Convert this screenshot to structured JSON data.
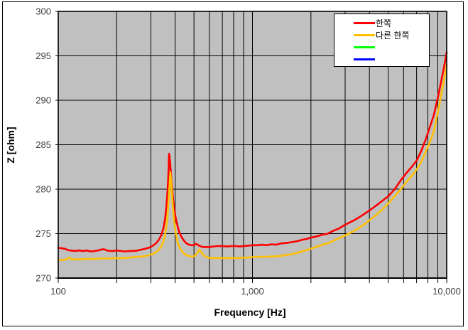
{
  "figure": {
    "x_axis_title": "Frequency [Hz]",
    "y_axis_title": "Z [ohm]"
  },
  "legend": {
    "position": "top-right",
    "items": [
      {
        "label": "한쪽",
        "color": "#ff0000"
      },
      {
        "label": "다른 한쪽",
        "color": "#ffc000"
      },
      {
        "label": "",
        "color": "#00ff00"
      },
      {
        "label": "",
        "color": "#0000ff"
      }
    ]
  },
  "chart_data": {
    "type": "line",
    "title": "",
    "xlabel": "Frequency [Hz]",
    "ylabel": "Z [ohm]",
    "x_scale": "log",
    "xlim": [
      100,
      10000
    ],
    "ylim": [
      270,
      300
    ],
    "y_ticks": [
      270,
      275,
      280,
      285,
      290,
      295,
      300
    ],
    "x_ticks": [
      100,
      1000,
      10000
    ],
    "x_tick_labels": [
      "100",
      "1,000",
      "10,000"
    ],
    "grid": "major and minor, black lines",
    "plot_bg": "#c0c0c0",
    "grid_color": "#000000",
    "tick_label_color": "#404040",
    "series": [
      {
        "name": "한쪽",
        "color": "#ff0000",
        "points": [
          [
            100,
            273.4
          ],
          [
            104,
            273.35
          ],
          [
            108,
            273.3
          ],
          [
            112,
            273.15
          ],
          [
            116,
            273.1
          ],
          [
            122,
            273.05
          ],
          [
            128,
            273.1
          ],
          [
            134,
            273.05
          ],
          [
            140,
            273.1
          ],
          [
            147,
            273.0
          ],
          [
            154,
            273.05
          ],
          [
            160,
            273.1
          ],
          [
            166,
            273.2
          ],
          [
            172,
            273.25
          ],
          [
            178,
            273.1
          ],
          [
            185,
            273.05
          ],
          [
            192,
            273.05
          ],
          [
            200,
            273.1
          ],
          [
            210,
            273.05
          ],
          [
            220,
            273.0
          ],
          [
            232,
            273.05
          ],
          [
            244,
            273.05
          ],
          [
            256,
            273.1
          ],
          [
            268,
            273.2
          ],
          [
            280,
            273.3
          ],
          [
            292,
            273.4
          ],
          [
            305,
            273.6
          ],
          [
            318,
            273.9
          ],
          [
            330,
            274.3
          ],
          [
            340,
            274.9
          ],
          [
            348,
            275.6
          ],
          [
            355,
            276.7
          ],
          [
            361,
            278.2
          ],
          [
            366,
            280.0
          ],
          [
            370,
            282.2
          ],
          [
            372,
            284.0
          ],
          [
            375,
            283.6
          ],
          [
            378,
            282.6
          ],
          [
            382,
            281.2
          ],
          [
            386,
            280.0
          ],
          [
            391,
            278.7
          ],
          [
            397,
            277.5
          ],
          [
            404,
            276.6
          ],
          [
            412,
            275.8
          ],
          [
            421,
            275.1
          ],
          [
            432,
            274.6
          ],
          [
            444,
            274.2
          ],
          [
            458,
            273.9
          ],
          [
            472,
            273.75
          ],
          [
            487,
            273.7
          ],
          [
            500,
            273.7
          ],
          [
            512,
            273.85
          ],
          [
            520,
            273.8
          ],
          [
            530,
            273.65
          ],
          [
            545,
            273.55
          ],
          [
            560,
            273.5
          ],
          [
            580,
            273.5
          ],
          [
            600,
            273.5
          ],
          [
            630,
            273.55
          ],
          [
            660,
            273.6
          ],
          [
            700,
            273.6
          ],
          [
            740,
            273.55
          ],
          [
            780,
            273.6
          ],
          [
            820,
            273.6
          ],
          [
            860,
            273.55
          ],
          [
            900,
            273.6
          ],
          [
            950,
            273.65
          ],
          [
            1000,
            273.7
          ],
          [
            1060,
            273.7
          ],
          [
            1120,
            273.75
          ],
          [
            1180,
            273.7
          ],
          [
            1250,
            273.8
          ],
          [
            1320,
            273.75
          ],
          [
            1400,
            273.9
          ],
          [
            1500,
            273.95
          ],
          [
            1600,
            274.05
          ],
          [
            1700,
            274.15
          ],
          [
            1800,
            274.3
          ],
          [
            1900,
            274.4
          ],
          [
            2000,
            274.55
          ],
          [
            2150,
            274.7
          ],
          [
            2300,
            274.9
          ],
          [
            2450,
            275.0
          ],
          [
            2600,
            275.3
          ],
          [
            2800,
            275.6
          ],
          [
            3000,
            276.0
          ],
          [
            3200,
            276.3
          ],
          [
            3400,
            276.6
          ],
          [
            3700,
            277.1
          ],
          [
            4000,
            277.6
          ],
          [
            4300,
            278.1
          ],
          [
            4600,
            278.6
          ],
          [
            5000,
            279.2
          ],
          [
            5400,
            280.0
          ],
          [
            5800,
            281.0
          ],
          [
            6200,
            281.8
          ],
          [
            6600,
            282.5
          ],
          [
            7000,
            283.2
          ],
          [
            7400,
            284.3
          ],
          [
            7800,
            285.6
          ],
          [
            8200,
            287.0
          ],
          [
            8600,
            288.4
          ],
          [
            9000,
            290.3
          ],
          [
            9400,
            292.3
          ],
          [
            9700,
            293.8
          ],
          [
            10000,
            295.4
          ]
        ]
      },
      {
        "name": "다른 한쪽",
        "color": "#ffc000",
        "points": [
          [
            100,
            272.0
          ],
          [
            105,
            272.05
          ],
          [
            110,
            272.1
          ],
          [
            114,
            272.3
          ],
          [
            118,
            272.1
          ],
          [
            124,
            272.1
          ],
          [
            130,
            272.1
          ],
          [
            140,
            272.15
          ],
          [
            152,
            272.15
          ],
          [
            165,
            272.2
          ],
          [
            180,
            272.2
          ],
          [
            200,
            272.25
          ],
          [
            215,
            272.25
          ],
          [
            230,
            272.3
          ],
          [
            245,
            272.35
          ],
          [
            260,
            272.4
          ],
          [
            275,
            272.45
          ],
          [
            290,
            272.55
          ],
          [
            305,
            272.7
          ],
          [
            318,
            272.9
          ],
          [
            330,
            273.2
          ],
          [
            342,
            273.7
          ],
          [
            352,
            274.5
          ],
          [
            360,
            275.7
          ],
          [
            366,
            277.3
          ],
          [
            371,
            279.2
          ],
          [
            375,
            280.8
          ],
          [
            378,
            281.9
          ],
          [
            381,
            281.0
          ],
          [
            385,
            279.5
          ],
          [
            390,
            277.8
          ],
          [
            396,
            276.2
          ],
          [
            403,
            275.0
          ],
          [
            411,
            274.1
          ],
          [
            420,
            273.5
          ],
          [
            432,
            273.05
          ],
          [
            445,
            272.75
          ],
          [
            460,
            272.55
          ],
          [
            476,
            272.45
          ],
          [
            492,
            272.4
          ],
          [
            508,
            272.55
          ],
          [
            522,
            272.9
          ],
          [
            532,
            273.2
          ],
          [
            542,
            273.0
          ],
          [
            555,
            272.65
          ],
          [
            570,
            272.45
          ],
          [
            590,
            272.3
          ],
          [
            620,
            272.25
          ],
          [
            660,
            272.25
          ],
          [
            700,
            272.25
          ],
          [
            750,
            272.25
          ],
          [
            800,
            272.25
          ],
          [
            850,
            272.25
          ],
          [
            900,
            272.3
          ],
          [
            950,
            272.3
          ],
          [
            1000,
            272.35
          ],
          [
            1100,
            272.4
          ],
          [
            1200,
            272.4
          ],
          [
            1300,
            272.45
          ],
          [
            1400,
            272.5
          ],
          [
            1500,
            272.6
          ],
          [
            1600,
            272.7
          ],
          [
            1700,
            272.85
          ],
          [
            1800,
            273.0
          ],
          [
            1900,
            273.15
          ],
          [
            2000,
            273.3
          ],
          [
            2150,
            273.55
          ],
          [
            2300,
            273.75
          ],
          [
            2500,
            274.0
          ],
          [
            2700,
            274.35
          ],
          [
            2900,
            274.65
          ],
          [
            3100,
            274.95
          ],
          [
            3300,
            275.25
          ],
          [
            3600,
            275.75
          ],
          [
            3900,
            276.3
          ],
          [
            4200,
            276.85
          ],
          [
            4600,
            277.6
          ],
          [
            5000,
            278.4
          ],
          [
            5400,
            279.2
          ],
          [
            5800,
            280.0
          ],
          [
            6200,
            280.8
          ],
          [
            6600,
            281.5
          ],
          [
            7000,
            282.2
          ],
          [
            7400,
            283.1
          ],
          [
            7800,
            284.2
          ],
          [
            8200,
            285.3
          ],
          [
            8600,
            286.6
          ],
          [
            9000,
            288.6
          ],
          [
            9400,
            290.8
          ],
          [
            9700,
            292.4
          ],
          [
            10000,
            294.0
          ]
        ]
      },
      {
        "name": "",
        "color": "#00ff00",
        "points": []
      },
      {
        "name": "",
        "color": "#0000ff",
        "points": []
      }
    ]
  }
}
